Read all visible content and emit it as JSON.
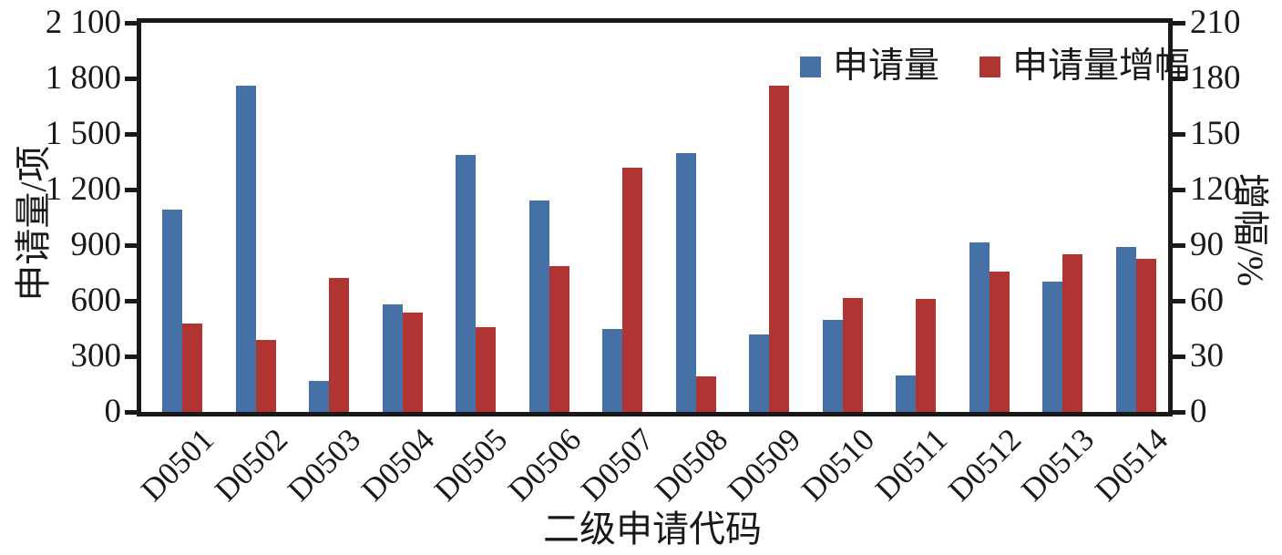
{
  "figure": {
    "background": "#ffffff",
    "text_color": "#1b1819",
    "axis_color": "#1b1819"
  },
  "chart_data": {
    "type": "bar",
    "title": "",
    "categories": [
      "D0501",
      "D0502",
      "D0503",
      "D0504",
      "D0505",
      "D0506",
      "D0507",
      "D0508",
      "D0509",
      "D0510",
      "D0511",
      "D0512",
      "D0513",
      "D0514"
    ],
    "series": [
      {
        "name": "申请量",
        "axis": "left",
        "color": "#4571a7",
        "values": [
          1090,
          1760,
          165,
          580,
          1385,
          1140,
          450,
          1395,
          420,
          495,
          195,
          915,
          705,
          890
        ]
      },
      {
        "name": "申请量增幅",
        "axis": "right",
        "color": "#b03431",
        "values": [
          47.5,
          39,
          72.5,
          53.5,
          45.5,
          78.5,
          132,
          19,
          176,
          61.5,
          61,
          75.5,
          85,
          82.5
        ]
      }
    ],
    "left_axis": {
      "label": "申请量/项",
      "min": 0,
      "max": 2100,
      "step": 300,
      "tick_labels": [
        "0",
        "300",
        "600",
        "900",
        "1 200",
        "1 500",
        "1 800",
        "2 100"
      ]
    },
    "right_axis": {
      "label": "增幅/%",
      "min": 0,
      "max": 210,
      "step": 30,
      "tick_labels": [
        "0",
        "30",
        "60",
        "90",
        "120",
        "150",
        "180",
        "210"
      ]
    },
    "xlabel": "二级申请代码",
    "grid": false,
    "legend_position": "top-right-inside"
  }
}
